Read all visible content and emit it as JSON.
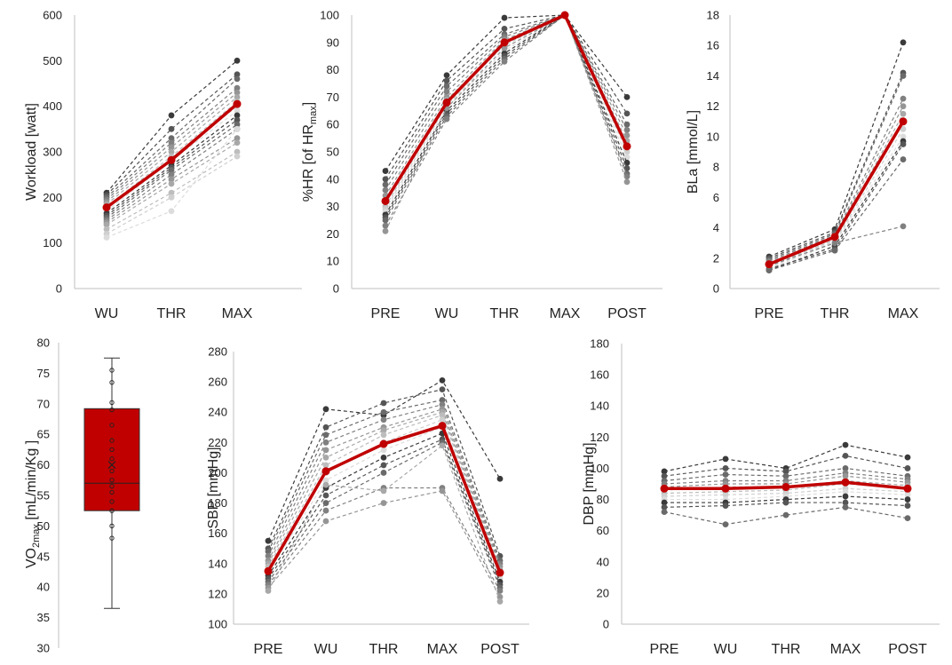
{
  "chart_data": [
    {
      "id": "workload",
      "type": "line",
      "ylabel": "Workload [watt]",
      "ylim": [
        0,
        600
      ],
      "yticks": [
        0,
        100,
        200,
        300,
        400,
        500,
        600
      ],
      "categories": [
        "WU",
        "THR",
        "MAX"
      ],
      "mean": [
        178,
        282,
        405
      ],
      "individuals": [
        [
          210,
          380,
          500
        ],
        [
          205,
          350,
          470
        ],
        [
          200,
          330,
          460
        ],
        [
          195,
          320,
          440
        ],
        [
          190,
          310,
          430
        ],
        [
          185,
          300,
          420
        ],
        [
          180,
          290,
          410
        ],
        [
          175,
          285,
          400
        ],
        [
          170,
          280,
          390
        ],
        [
          165,
          270,
          380
        ],
        [
          160,
          265,
          370
        ],
        [
          155,
          260,
          360
        ],
        [
          150,
          250,
          350
        ],
        [
          145,
          240,
          330
        ],
        [
          140,
          230,
          320
        ],
        [
          130,
          210,
          300
        ],
        [
          120,
          200,
          290
        ],
        [
          112,
          170,
          350
        ]
      ]
    },
    {
      "id": "hr",
      "type": "line",
      "ylabel": "%HR [of HR",
      "ylabel_sub": "max",
      "ylabel_end": "]",
      "ylim": [
        0,
        100
      ],
      "yticks": [
        0,
        10,
        20,
        30,
        40,
        50,
        60,
        70,
        80,
        90,
        100
      ],
      "categories": [
        "PRE",
        "WU",
        "THR",
        "MAX",
        "POST"
      ],
      "mean": [
        32,
        68,
        90,
        100,
        52
      ],
      "individuals": [
        [
          43,
          78,
          99,
          100,
          70
        ],
        [
          40,
          76,
          95,
          100,
          64
        ],
        [
          38,
          74,
          93,
          100,
          60
        ],
        [
          36,
          72,
          92,
          100,
          58
        ],
        [
          34,
          70,
          91,
          100,
          56
        ],
        [
          32,
          69,
          90,
          100,
          54
        ],
        [
          30,
          68,
          89,
          100,
          52
        ],
        [
          29,
          67,
          88,
          100,
          50
        ],
        [
          28,
          66,
          87,
          100,
          48
        ],
        [
          27,
          65,
          86,
          100,
          46
        ],
        [
          26,
          64,
          85,
          100,
          44
        ],
        [
          25,
          63,
          84,
          100,
          42
        ],
        [
          23,
          62,
          83,
          100,
          41
        ],
        [
          21,
          66,
          88,
          100,
          39
        ]
      ]
    },
    {
      "id": "bla",
      "type": "line",
      "ylabel": "BLa [mmol/L]",
      "ylim": [
        0,
        18
      ],
      "yticks": [
        0,
        2,
        4,
        6,
        8,
        10,
        12,
        14,
        16,
        18
      ],
      "categories": [
        "PRE",
        "THR",
        "MAX"
      ],
      "mean": [
        1.6,
        3.4,
        11.0
      ],
      "individuals": [
        [
          2.1,
          3.9,
          16.2
        ],
        [
          2.0,
          3.7,
          14.2
        ],
        [
          1.9,
          3.6,
          14.0
        ],
        [
          1.8,
          3.5,
          12.5
        ],
        [
          1.7,
          3.4,
          12.0
        ],
        [
          1.6,
          3.3,
          11.5
        ],
        [
          1.5,
          3.2,
          11.0
        ],
        [
          1.4,
          3.1,
          10.5
        ],
        [
          1.3,
          3.0,
          10.0
        ],
        [
          1.2,
          2.8,
          9.7
        ],
        [
          1.3,
          2.6,
          9.5
        ],
        [
          1.2,
          2.5,
          8.5
        ],
        [
          1.5,
          3.0,
          4.1
        ]
      ]
    },
    {
      "id": "vo2",
      "type": "box",
      "ylabel": "VO",
      "ylabel_sub": "2max",
      "ylabel_end": " [mL/min/Kg ]",
      "ylim": [
        30,
        80
      ],
      "yticks": [
        30,
        35,
        40,
        45,
        50,
        55,
        60,
        65,
        70,
        75,
        80
      ],
      "min": 36.5,
      "q1": 52.5,
      "median": 57,
      "q3": 69.2,
      "max": 77.5,
      "mean": 60,
      "points": [
        75.5,
        73.5,
        70.2,
        69,
        66.5,
        64,
        62.5,
        61,
        59,
        57.5,
        56.5,
        55.5,
        54,
        52.5,
        50,
        48
      ]
    },
    {
      "id": "sbp",
      "type": "line",
      "ylabel": "SBP [mmHg]",
      "ylim": [
        100,
        280
      ],
      "yticks": [
        100,
        120,
        140,
        160,
        180,
        200,
        220,
        240,
        260,
        280
      ],
      "categories": [
        "PRE",
        "WU",
        "THR",
        "MAX",
        "POST"
      ],
      "mean": [
        135,
        201,
        219,
        231,
        134
      ],
      "individuals": [
        [
          155,
          242,
          238,
          261,
          196
        ],
        [
          150,
          230,
          246,
          255,
          145
        ],
        [
          148,
          225,
          240,
          248,
          142
        ],
        [
          145,
          220,
          235,
          245,
          140
        ],
        [
          142,
          215,
          230,
          242,
          138
        ],
        [
          140,
          210,
          228,
          240,
          136
        ],
        [
          138,
          205,
          225,
          238,
          134
        ],
        [
          136,
          200,
          220,
          235,
          132
        ],
        [
          134,
          195,
          215,
          230,
          130
        ],
        [
          132,
          190,
          210,
          226,
          128
        ],
        [
          130,
          185,
          205,
          222,
          126
        ],
        [
          128,
          180,
          200,
          220,
          124
        ],
        [
          126,
          175,
          190,
          190,
          122
        ],
        [
          124,
          168,
          180,
          188,
          118
        ],
        [
          122,
          192,
          188,
          218,
          115
        ]
      ]
    },
    {
      "id": "dbp",
      "type": "line",
      "ylabel": "DBP [mmHg]",
      "ylim": [
        0,
        180
      ],
      "yticks": [
        0,
        20,
        40,
        60,
        80,
        100,
        120,
        140,
        160,
        180
      ],
      "categories": [
        "PRE",
        "WU",
        "THR",
        "MAX",
        "POST"
      ],
      "mean": [
        87,
        87,
        88,
        91,
        87
      ],
      "individuals": [
        [
          98,
          106,
          100,
          115,
          107
        ],
        [
          95,
          100,
          98,
          108,
          100
        ],
        [
          92,
          96,
          95,
          100,
          95
        ],
        [
          90,
          92,
          92,
          97,
          93
        ],
        [
          88,
          90,
          90,
          95,
          91
        ],
        [
          86,
          88,
          88,
          92,
          89
        ],
        [
          84,
          85,
          86,
          90,
          87
        ],
        [
          82,
          83,
          84,
          87,
          85
        ],
        [
          80,
          80,
          82,
          85,
          83
        ],
        [
          78,
          78,
          80,
          82,
          80
        ],
        [
          75,
          76,
          78,
          78,
          76
        ],
        [
          72,
          64,
          70,
          75,
          68
        ]
      ]
    }
  ]
}
